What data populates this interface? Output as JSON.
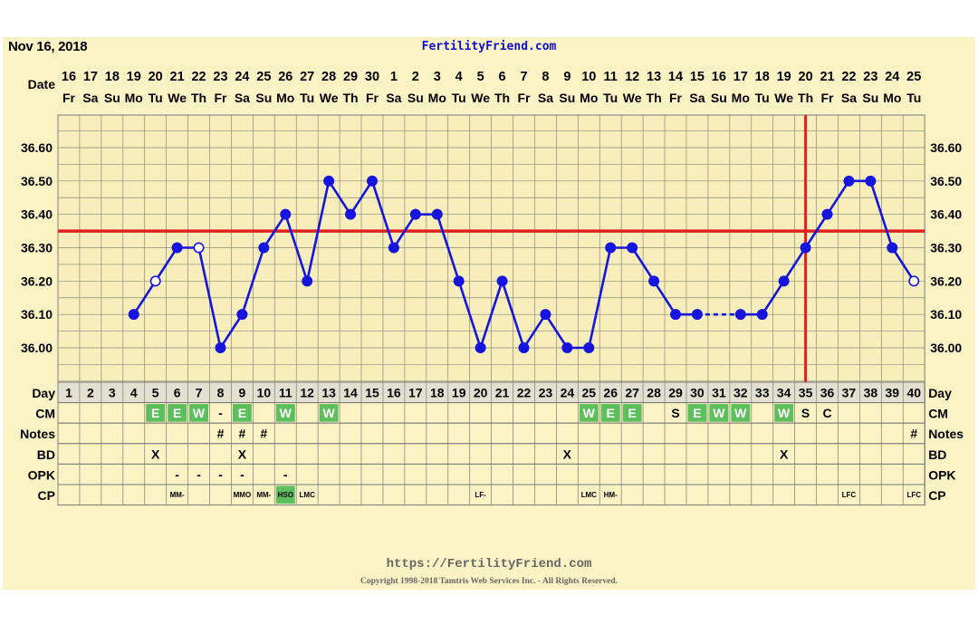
{
  "header": {
    "date": "Nov 16, 2018",
    "site": "FertilityFriend.com"
  },
  "footer": {
    "url": "https://FertilityFriend.com",
    "copyright": "Copyright 1998-2018 Tamtris Web Services Inc. - All Rights Reserved."
  },
  "chart_data": {
    "type": "line",
    "title": "",
    "xlabel": "",
    "ylabel": "",
    "ylim": [
      35.9,
      36.7
    ],
    "y_ticks": [
      "36.00",
      "36.10",
      "36.20",
      "36.30",
      "36.40",
      "36.50",
      "36.60"
    ],
    "grid": true,
    "colors": {
      "line": "#1515dd",
      "coverline": "#dd2222",
      "green_cell": "#5cbf5c",
      "panel": "#fbf3c4"
    },
    "row_labels": {
      "date": "Date",
      "day": "Day",
      "cm": "CM",
      "notes": "Notes",
      "bd": "BD",
      "opk": "OPK",
      "cp": "CP"
    },
    "dates": [
      "16",
      "17",
      "18",
      "19",
      "20",
      "21",
      "22",
      "23",
      "24",
      "25",
      "26",
      "27",
      "28",
      "29",
      "30",
      "1",
      "2",
      "3",
      "4",
      "5",
      "6",
      "7",
      "8",
      "9",
      "10",
      "11",
      "12",
      "13",
      "14",
      "15",
      "16",
      "17",
      "18",
      "19",
      "20",
      "21",
      "22",
      "23",
      "24",
      "25"
    ],
    "weekdays": [
      "Fr",
      "Sa",
      "Su",
      "Mo",
      "Tu",
      "We",
      "Th",
      "Fr",
      "Sa",
      "Su",
      "Mo",
      "Tu",
      "We",
      "Th",
      "Fr",
      "Sa",
      "Su",
      "Mo",
      "Tu",
      "We",
      "Th",
      "Fr",
      "Sa",
      "Su",
      "Mo",
      "Tu",
      "We",
      "Th",
      "Fr",
      "Sa",
      "Su",
      "Mo",
      "Tu",
      "We",
      "Th",
      "Fr",
      "Sa",
      "Su",
      "Mo",
      "Tu"
    ],
    "days": [
      "1",
      "2",
      "3",
      "4",
      "5",
      "6",
      "7",
      "8",
      "9",
      "10",
      "11",
      "12",
      "13",
      "14",
      "15",
      "16",
      "17",
      "18",
      "19",
      "20",
      "21",
      "22",
      "23",
      "24",
      "25",
      "26",
      "27",
      "28",
      "29",
      "30",
      "31",
      "32",
      "33",
      "34",
      "35",
      "36",
      "37",
      "38",
      "39",
      "40"
    ],
    "series": [
      {
        "values": [
          null,
          null,
          null,
          36.1,
          36.2,
          36.3,
          36.3,
          36.0,
          36.1,
          36.3,
          36.4,
          36.2,
          36.5,
          36.4,
          36.5,
          36.3,
          36.4,
          36.4,
          36.2,
          36.0,
          36.2,
          36.0,
          36.1,
          36.0,
          36.0,
          36.3,
          36.3,
          36.2,
          36.1,
          36.1,
          null,
          36.1,
          36.1,
          36.2,
          36.3,
          36.4,
          36.5,
          36.5,
          36.3,
          36.2
        ],
        "open_markers": [
          5,
          7,
          40
        ],
        "dashed_gap_after_day": 30
      }
    ],
    "coverline": 36.35,
    "current_day": 35,
    "cm": [
      "",
      "",
      "",
      "",
      "E",
      "E",
      "W",
      "-",
      "E",
      "",
      "W",
      "",
      "W",
      "",
      "",
      "",
      "",
      "",
      "",
      "",
      "",
      "",
      "",
      "",
      "W",
      "E",
      "E",
      "",
      "S",
      "E",
      "W",
      "W",
      "",
      "W",
      "S",
      "C",
      "",
      "",
      "",
      ""
    ],
    "cm_green_days": [
      5,
      6,
      7,
      9,
      11,
      13,
      25,
      26,
      27,
      30,
      31,
      32,
      34
    ],
    "notes": [
      "",
      "",
      "",
      "",
      "",
      "",
      "",
      "#",
      "#",
      "#",
      "",
      "",
      "",
      "",
      "",
      "",
      "",
      "",
      "",
      "",
      "",
      "",
      "",
      "",
      "",
      "",
      "",
      "",
      "",
      "",
      "",
      "",
      "",
      "",
      "",
      "",
      "",
      "",
      "",
      "#"
    ],
    "bd": [
      "",
      "",
      "",
      "",
      "X",
      "",
      "",
      "",
      "X",
      "",
      "",
      "",
      "",
      "",
      "",
      "",
      "",
      "",
      "",
      "",
      "",
      "",
      "",
      "X",
      "",
      "",
      "",
      "",
      "",
      "",
      "",
      "",
      "",
      "X",
      "",
      "",
      "",
      "",
      "",
      ""
    ],
    "opk": [
      "",
      "",
      "",
      "",
      "",
      "-",
      "-",
      "-",
      "-",
      "",
      "-",
      "",
      "",
      "",
      "",
      "",
      "",
      "",
      "",
      "",
      "",
      "",
      "",
      "",
      "",
      "",
      "",
      "",
      "",
      "",
      "",
      "",
      "",
      "",
      "",
      "",
      "",
      "",
      "",
      ""
    ],
    "cp": [
      "",
      "",
      "",
      "",
      "",
      "MM-",
      "",
      "",
      "MMO",
      "MM-",
      "HSO",
      "LMC",
      "",
      "",
      "",
      "",
      "",
      "",
      "",
      "LF-",
      "",
      "",
      "",
      "",
      "LMC",
      "HM-",
      "",
      "",
      "",
      "",
      "",
      "",
      "",
      "",
      "",
      "",
      "LFC",
      "",
      "",
      "LFC"
    ],
    "cp_green_days": [
      11
    ]
  }
}
